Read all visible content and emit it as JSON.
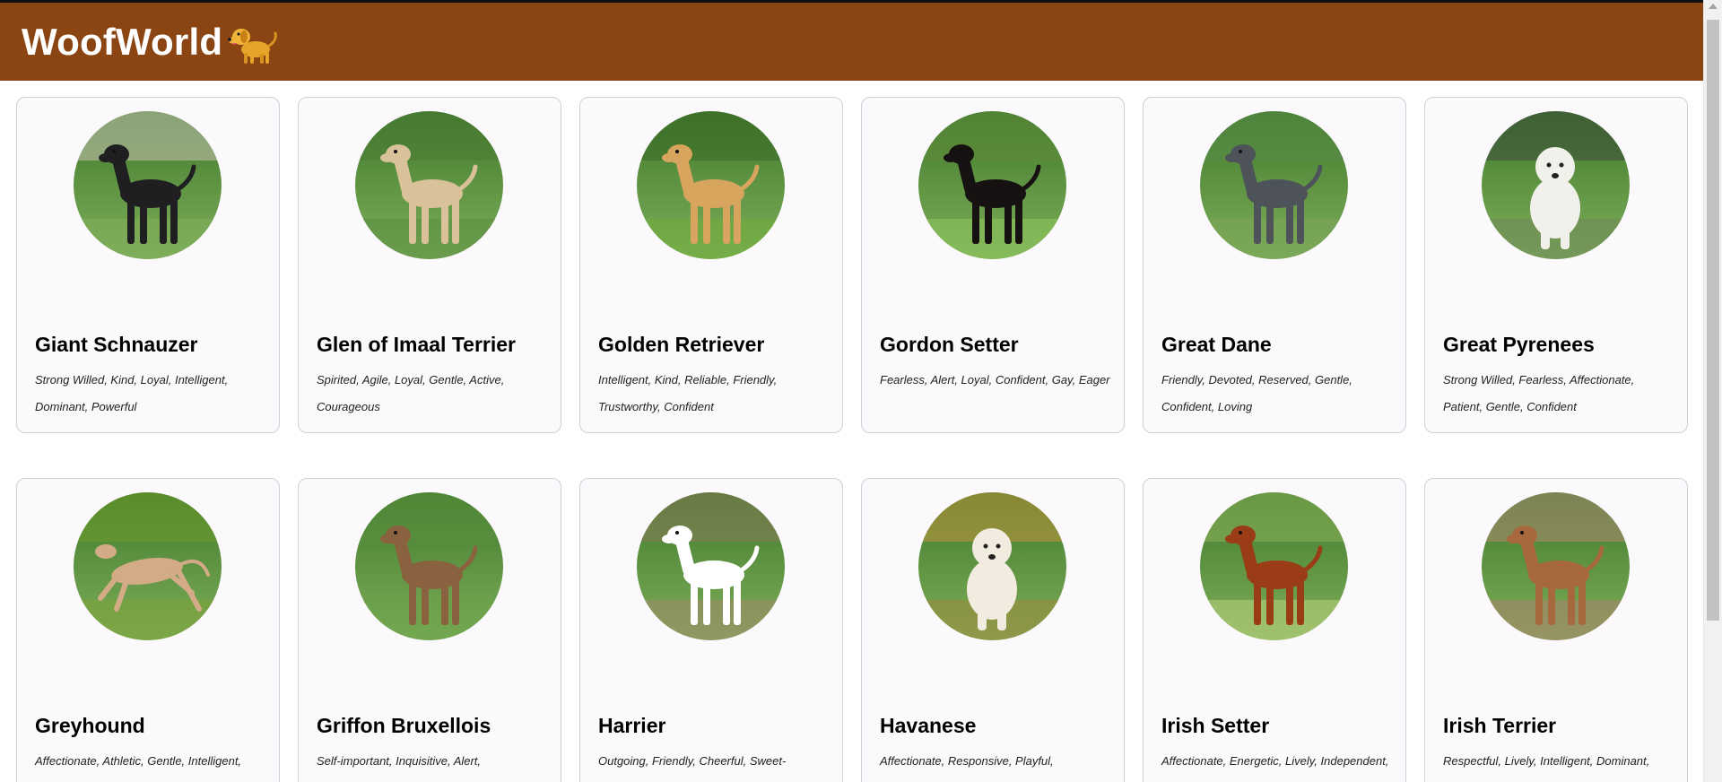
{
  "header": {
    "title": "WoofWorld",
    "logo_icon": "golden-dog-icon",
    "background": "#8b4513"
  },
  "breeds": [
    {
      "name": "Giant Schnauzer",
      "traits": "Strong Willed, Kind, Loyal, Intelligent, Dominant, Powerful"
    },
    {
      "name": "Glen of Imaal Terrier",
      "traits": "Spirited, Agile, Loyal, Gentle, Active, Courageous"
    },
    {
      "name": "Golden Retriever",
      "traits": "Intelligent, Kind, Reliable, Friendly, Trustworthy, Confident"
    },
    {
      "name": "Gordon Setter",
      "traits": "Fearless, Alert, Loyal, Confident, Gay, Eager"
    },
    {
      "name": "Great Dane",
      "traits": "Friendly, Devoted, Reserved, Gentle, Confident, Loving"
    },
    {
      "name": "Great Pyrenees",
      "traits": "Strong Willed, Fearless, Affectionate, Patient, Gentle, Confident"
    },
    {
      "name": "Greyhound",
      "traits": "Affectionate, Athletic, Gentle, Intelligent, Quiet, Even Tempered"
    },
    {
      "name": "Griffon Bruxellois",
      "traits": "Self-important, Inquisitive, Alert, Companionable, Sensitive, Watchful"
    },
    {
      "name": "Harrier",
      "traits": "Outgoing, Friendly, Cheerful, Sweet-Tempered, Tolerant, Active"
    },
    {
      "name": "Havanese",
      "traits": "Affectionate, Responsive, Playful, Companionable, Gentle, Intelligent"
    },
    {
      "name": "Irish Setter",
      "traits": "Affectionate, Energetic, Lively, Independent, Playful, Companionable"
    },
    {
      "name": "Irish Terrier",
      "traits": "Respectful, Lively, Intelligent, Dominant, Protective, Trainable"
    }
  ]
}
